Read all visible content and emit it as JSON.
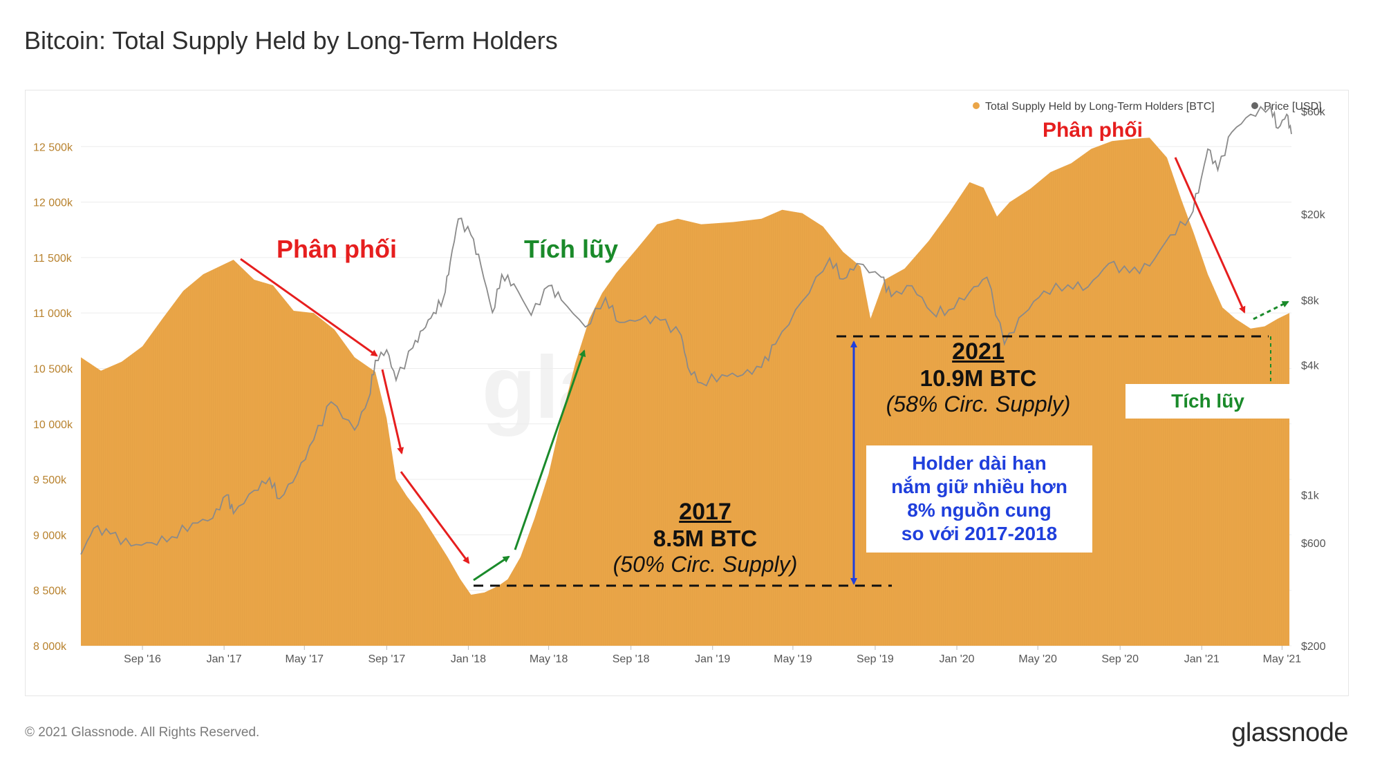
{
  "header": {
    "title": "Bitcoin: Total Supply Held by Long-Term Holders"
  },
  "footer": {
    "copyright": "© 2021 Glassnode. All Rights Reserved.",
    "logo": "glassnode"
  },
  "watermark": "glassnode",
  "colors": {
    "supply_fill": "#eaa548",
    "price_line": "#8a8a8a",
    "left_axis_text": "#b8822e",
    "right_axis_text": "#555555",
    "red_arrow": "#e61e1e",
    "green_arrow": "#1a8a2a",
    "blue_arrow": "#1f3fdc"
  },
  "annotations": {
    "distribution_1": "Phân phối",
    "accumulation_1": "Tích lũy",
    "distribution_2": "Phân phối",
    "accumulation_2": "Tích lũy",
    "y2017": {
      "year": "2017",
      "amount": "8.5M BTC",
      "pct": "(50% Circ. Supply)"
    },
    "y2021": {
      "year": "2021",
      "amount": "10.9M BTC",
      "pct": "(58% Circ. Supply)"
    },
    "holder_box": [
      "Holder dài hạn",
      "nắm giữ nhiều hơn",
      "8% nguồn cung",
      "so với 2017-2018"
    ]
  },
  "chart_data": {
    "type": "area",
    "legend_position": "top-right",
    "legend": [
      {
        "name": "Total Supply Held by Long-Term Holders [BTC]",
        "color": "#eaa548"
      },
      {
        "name": "Price [USD]",
        "color": "#666666"
      }
    ],
    "x_ticks": [
      "Sep '16",
      "Jan '17",
      "May '17",
      "Sep '17",
      "Jan '18",
      "May '18",
      "Sep '18",
      "Jan '19",
      "May '19",
      "Sep '19",
      "Jan '20",
      "May '20",
      "Sep '20",
      "Jan '21",
      "May '21"
    ],
    "x_tick_dates": [
      "2016-09-01",
      "2017-01-01",
      "2017-05-01",
      "2017-09-01",
      "2018-01-01",
      "2018-05-01",
      "2018-09-01",
      "2019-01-01",
      "2019-05-01",
      "2019-09-01",
      "2020-01-01",
      "2020-05-01",
      "2020-09-01",
      "2021-01-01",
      "2021-05-01"
    ],
    "x_range": [
      "2016-06-01",
      "2021-05-15"
    ],
    "y_left": {
      "ticks": [
        "8 000k",
        "8 500k",
        "9 000k",
        "9 500k",
        "10 000k",
        "10 500k",
        "11 000k",
        "11 500k",
        "12 000k",
        "12 500k"
      ],
      "tick_values": [
        8000,
        8500,
        9000,
        9500,
        10000,
        10500,
        11000,
        11500,
        12000,
        12500
      ],
      "range": [
        8000,
        12950
      ],
      "unit": "k BTC"
    },
    "y_right": {
      "scale": "log",
      "ticks": [
        "$200",
        "$600",
        "$1k",
        "$4k",
        "$8k",
        "$20k",
        "$60k"
      ],
      "tick_values": [
        200,
        600,
        1000,
        4000,
        8000,
        20000,
        60000
      ],
      "range": [
        200,
        70000
      ]
    },
    "grid": true,
    "series": [
      {
        "name": "Total Supply Held by Long-Term Holders [BTC]",
        "axis": "left",
        "type": "area",
        "points": [
          [
            "2016-06-01",
            10600
          ],
          [
            "2016-07-01",
            10480
          ],
          [
            "2016-08-01",
            10560
          ],
          [
            "2016-09-01",
            10700
          ],
          [
            "2016-10-01",
            10950
          ],
          [
            "2016-11-01",
            11200
          ],
          [
            "2016-12-01",
            11350
          ],
          [
            "2017-01-15",
            11480
          ],
          [
            "2017-02-15",
            11300
          ],
          [
            "2017-03-15",
            11250
          ],
          [
            "2017-04-15",
            11020
          ],
          [
            "2017-05-15",
            11000
          ],
          [
            "2017-06-15",
            10850
          ],
          [
            "2017-07-15",
            10600
          ],
          [
            "2017-08-15",
            10470
          ],
          [
            "2017-09-01",
            10050
          ],
          [
            "2017-09-15",
            9500
          ],
          [
            "2017-10-01",
            9350
          ],
          [
            "2017-10-20",
            9200
          ],
          [
            "2017-11-10",
            9000
          ],
          [
            "2017-12-01",
            8800
          ],
          [
            "2017-12-20",
            8600
          ],
          [
            "2018-01-05",
            8460
          ],
          [
            "2018-01-25",
            8480
          ],
          [
            "2018-02-15",
            8540
          ],
          [
            "2018-03-01",
            8600
          ],
          [
            "2018-03-20",
            8800
          ],
          [
            "2018-04-10",
            9150
          ],
          [
            "2018-05-01",
            9550
          ],
          [
            "2018-05-20",
            10050
          ],
          [
            "2018-06-10",
            10550
          ],
          [
            "2018-07-01",
            10950
          ],
          [
            "2018-07-20",
            11180
          ],
          [
            "2018-08-10",
            11360
          ],
          [
            "2018-09-10",
            11580
          ],
          [
            "2018-10-10",
            11800
          ],
          [
            "2018-11-10",
            11850
          ],
          [
            "2018-12-15",
            11800
          ],
          [
            "2019-02-01",
            11820
          ],
          [
            "2019-03-15",
            11850
          ],
          [
            "2019-04-15",
            11930
          ],
          [
            "2019-05-15",
            11900
          ],
          [
            "2019-06-15",
            11780
          ],
          [
            "2019-07-15",
            11550
          ],
          [
            "2019-08-10",
            11420
          ],
          [
            "2019-08-25",
            10950
          ],
          [
            "2019-09-15",
            11300
          ],
          [
            "2019-10-15",
            11400
          ],
          [
            "2019-11-20",
            11650
          ],
          [
            "2019-12-20",
            11900
          ],
          [
            "2020-01-20",
            12180
          ],
          [
            "2020-02-10",
            12130
          ],
          [
            "2020-03-01",
            11870
          ],
          [
            "2020-03-20",
            12000
          ],
          [
            "2020-04-20",
            12120
          ],
          [
            "2020-05-20",
            12270
          ],
          [
            "2020-06-20",
            12350
          ],
          [
            "2020-07-20",
            12480
          ],
          [
            "2020-08-20",
            12550
          ],
          [
            "2020-09-20",
            12570
          ],
          [
            "2020-10-15",
            12580
          ],
          [
            "2020-11-10",
            12400
          ],
          [
            "2020-12-01",
            12030
          ],
          [
            "2020-12-20",
            11720
          ],
          [
            "2021-01-10",
            11350
          ],
          [
            "2021-02-01",
            11050
          ],
          [
            "2021-02-20",
            10950
          ],
          [
            "2021-03-15",
            10860
          ],
          [
            "2021-04-05",
            10880
          ],
          [
            "2021-04-25",
            10950
          ],
          [
            "2021-05-12",
            11000
          ]
        ]
      },
      {
        "name": "Price [USD]",
        "axis": "right",
        "type": "line",
        "points": [
          [
            "2016-06-01",
            530
          ],
          [
            "2016-06-20",
            700
          ],
          [
            "2016-07-15",
            660
          ],
          [
            "2016-08-15",
            580
          ],
          [
            "2016-09-15",
            600
          ],
          [
            "2016-10-15",
            640
          ],
          [
            "2016-11-15",
            740
          ],
          [
            "2016-12-15",
            780
          ],
          [
            "2017-01-05",
            1000
          ],
          [
            "2017-01-15",
            820
          ],
          [
            "2017-02-15",
            1050
          ],
          [
            "2017-03-10",
            1200
          ],
          [
            "2017-03-25",
            960
          ],
          [
            "2017-04-20",
            1250
          ],
          [
            "2017-05-15",
            1800
          ],
          [
            "2017-06-10",
            2700
          ],
          [
            "2017-07-15",
            2000
          ],
          [
            "2017-08-05",
            2800
          ],
          [
            "2017-08-15",
            4200
          ],
          [
            "2017-09-01",
            4700
          ],
          [
            "2017-09-15",
            3400
          ],
          [
            "2017-10-10",
            4800
          ],
          [
            "2017-10-25",
            5800
          ],
          [
            "2017-11-10",
            7000
          ],
          [
            "2017-11-25",
            8200
          ],
          [
            "2017-12-05",
            12000
          ],
          [
            "2017-12-17",
            19000
          ],
          [
            "2018-01-05",
            16000
          ],
          [
            "2018-01-20",
            11500
          ],
          [
            "2018-02-06",
            7000
          ],
          [
            "2018-02-20",
            10500
          ],
          [
            "2018-03-10",
            9500
          ],
          [
            "2018-04-05",
            6800
          ],
          [
            "2018-05-01",
            9300
          ],
          [
            "2018-05-20",
            8000
          ],
          [
            "2018-06-25",
            6000
          ],
          [
            "2018-07-25",
            8200
          ],
          [
            "2018-08-15",
            6300
          ],
          [
            "2018-09-15",
            6500
          ],
          [
            "2018-10-15",
            6450
          ],
          [
            "2018-11-15",
            5500
          ],
          [
            "2018-11-25",
            3900
          ],
          [
            "2018-12-15",
            3300
          ],
          [
            "2019-01-15",
            3600
          ],
          [
            "2019-02-15",
            3600
          ],
          [
            "2019-03-15",
            3900
          ],
          [
            "2019-04-05",
            5000
          ],
          [
            "2019-05-15",
            7900
          ],
          [
            "2019-06-25",
            12500
          ],
          [
            "2019-07-15",
            10000
          ],
          [
            "2019-08-05",
            11800
          ],
          [
            "2019-09-10",
            10200
          ],
          [
            "2019-09-25",
            8300
          ],
          [
            "2019-10-26",
            9300
          ],
          [
            "2019-11-25",
            7000
          ],
          [
            "2019-12-20",
            7200
          ],
          [
            "2020-01-20",
            8700
          ],
          [
            "2020-02-15",
            10200
          ],
          [
            "2020-03-12",
            5000
          ],
          [
            "2020-04-10",
            6900
          ],
          [
            "2020-05-10",
            8800
          ],
          [
            "2020-06-15",
            9400
          ],
          [
            "2020-07-15",
            9200
          ],
          [
            "2020-08-15",
            11800
          ],
          [
            "2020-09-15",
            10700
          ],
          [
            "2020-10-15",
            11500
          ],
          [
            "2020-11-15",
            16000
          ],
          [
            "2020-12-15",
            19500
          ],
          [
            "2020-12-31",
            29000
          ],
          [
            "2021-01-10",
            40000
          ],
          [
            "2021-01-25",
            32000
          ],
          [
            "2021-02-15",
            48000
          ],
          [
            "2021-03-15",
            58000
          ],
          [
            "2021-04-14",
            63000
          ],
          [
            "2021-04-25",
            50000
          ],
          [
            "2021-05-08",
            58000
          ],
          [
            "2021-05-15",
            47000
          ]
        ]
      }
    ]
  }
}
